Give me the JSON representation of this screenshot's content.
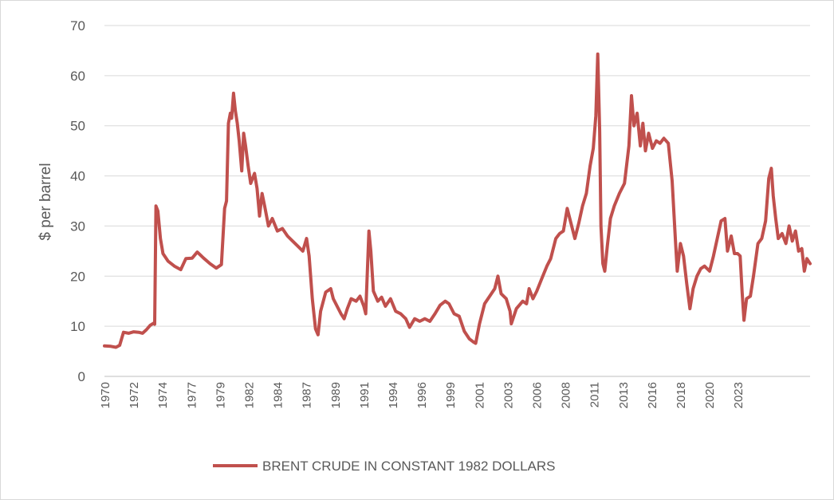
{
  "chart_data": {
    "type": "line",
    "ylabel": "$ per barrel",
    "xlabel": "",
    "ylim": [
      0,
      70
    ],
    "yticks": [
      0,
      10,
      20,
      30,
      40,
      50,
      60,
      70
    ],
    "xlim": [
      1970,
      2025.5
    ],
    "xtick_labels": [
      "1970",
      "1972",
      "1974",
      "1977",
      "1979",
      "1982",
      "1984",
      "1987",
      "1989",
      "1991",
      "1994",
      "1996",
      "1999",
      "2001",
      "2003",
      "2006",
      "2008",
      "2011",
      "2013",
      "2016",
      "2018",
      "2020",
      "2023"
    ],
    "grid": "horizontal",
    "legend_position": "bottom",
    "color": "#c0504d",
    "series": [
      {
        "name": "BRENT CRUDE IN CONSTANT 1982 DOLLARS",
        "points": [
          [
            1970.0,
            6.1
          ],
          [
            1970.5,
            6.0
          ],
          [
            1970.9,
            5.8
          ],
          [
            1971.2,
            6.2
          ],
          [
            1971.5,
            8.8
          ],
          [
            1971.9,
            8.6
          ],
          [
            1972.3,
            8.9
          ],
          [
            1972.7,
            8.8
          ],
          [
            1973.0,
            8.6
          ],
          [
            1973.3,
            9.3
          ],
          [
            1973.6,
            10.2
          ],
          [
            1973.85,
            10.6
          ],
          [
            1973.95,
            10.4
          ],
          [
            1974.05,
            34.0
          ],
          [
            1974.2,
            33.0
          ],
          [
            1974.4,
            27.5
          ],
          [
            1974.6,
            24.5
          ],
          [
            1975.0,
            23.0
          ],
          [
            1975.5,
            22.0
          ],
          [
            1976.0,
            21.3
          ],
          [
            1976.4,
            23.5
          ],
          [
            1976.9,
            23.6
          ],
          [
            1977.3,
            24.8
          ],
          [
            1977.8,
            23.6
          ],
          [
            1978.3,
            22.5
          ],
          [
            1978.8,
            21.6
          ],
          [
            1979.2,
            22.3
          ],
          [
            1979.45,
            33.5
          ],
          [
            1979.6,
            35.0
          ],
          [
            1979.75,
            50.5
          ],
          [
            1979.9,
            52.5
          ],
          [
            1980.0,
            51.5
          ],
          [
            1980.15,
            56.5
          ],
          [
            1980.3,
            53.0
          ],
          [
            1980.45,
            50.5
          ],
          [
            1980.6,
            47.0
          ],
          [
            1980.8,
            41.0
          ],
          [
            1980.95,
            48.5
          ],
          [
            1981.1,
            46.0
          ],
          [
            1981.3,
            42.0
          ],
          [
            1981.5,
            38.5
          ],
          [
            1981.8,
            40.5
          ],
          [
            1982.0,
            37.5
          ],
          [
            1982.2,
            32.0
          ],
          [
            1982.4,
            36.5
          ],
          [
            1982.6,
            34.0
          ],
          [
            1982.9,
            30.0
          ],
          [
            1983.2,
            31.5
          ],
          [
            1983.6,
            29.0
          ],
          [
            1984.0,
            29.5
          ],
          [
            1984.4,
            28.0
          ],
          [
            1984.8,
            27.0
          ],
          [
            1985.2,
            26.0
          ],
          [
            1985.6,
            25.0
          ],
          [
            1985.9,
            27.5
          ],
          [
            1986.1,
            24.0
          ],
          [
            1986.35,
            15.5
          ],
          [
            1986.6,
            9.5
          ],
          [
            1986.8,
            8.3
          ],
          [
            1987.0,
            13.0
          ],
          [
            1987.4,
            16.8
          ],
          [
            1987.8,
            17.5
          ],
          [
            1988.0,
            15.5
          ],
          [
            1988.3,
            14.0
          ],
          [
            1988.6,
            12.5
          ],
          [
            1988.85,
            11.5
          ],
          [
            1989.1,
            13.5
          ],
          [
            1989.4,
            15.5
          ],
          [
            1989.8,
            15.0
          ],
          [
            1990.1,
            16.0
          ],
          [
            1990.4,
            14.0
          ],
          [
            1990.55,
            12.5
          ],
          [
            1990.8,
            29.0
          ],
          [
            1990.95,
            25.0
          ],
          [
            1991.15,
            17.0
          ],
          [
            1991.5,
            15.0
          ],
          [
            1991.8,
            15.8
          ],
          [
            1992.1,
            14.0
          ],
          [
            1992.5,
            15.5
          ],
          [
            1992.9,
            13.0
          ],
          [
            1993.3,
            12.5
          ],
          [
            1993.7,
            11.5
          ],
          [
            1994.0,
            9.8
          ],
          [
            1994.4,
            11.5
          ],
          [
            1994.8,
            11.0
          ],
          [
            1995.2,
            11.5
          ],
          [
            1995.6,
            11.0
          ],
          [
            1996.0,
            12.5
          ],
          [
            1996.4,
            14.2
          ],
          [
            1996.8,
            15.0
          ],
          [
            1997.1,
            14.5
          ],
          [
            1997.5,
            12.5
          ],
          [
            1997.9,
            12.0
          ],
          [
            1998.3,
            9.0
          ],
          [
            1998.7,
            7.5
          ],
          [
            1999.0,
            6.9
          ],
          [
            1999.2,
            6.6
          ],
          [
            1999.5,
            10.5
          ],
          [
            1999.9,
            14.5
          ],
          [
            2000.3,
            16.0
          ],
          [
            2000.7,
            17.5
          ],
          [
            2000.95,
            20.0
          ],
          [
            2001.2,
            16.5
          ],
          [
            2001.6,
            15.5
          ],
          [
            2001.9,
            13.0
          ],
          [
            2002.0,
            10.5
          ],
          [
            2002.4,
            13.5
          ],
          [
            2002.9,
            15.0
          ],
          [
            2003.2,
            14.5
          ],
          [
            2003.4,
            17.5
          ],
          [
            2003.7,
            15.5
          ],
          [
            2004.0,
            17.0
          ],
          [
            2004.4,
            19.5
          ],
          [
            2004.8,
            22.0
          ],
          [
            2005.1,
            23.5
          ],
          [
            2005.5,
            27.5
          ],
          [
            2005.8,
            28.5
          ],
          [
            2006.1,
            29.0
          ],
          [
            2006.4,
            33.5
          ],
          [
            2006.7,
            30.5
          ],
          [
            2007.0,
            27.5
          ],
          [
            2007.3,
            30.5
          ],
          [
            2007.6,
            34.0
          ],
          [
            2007.9,
            36.5
          ],
          [
            2008.2,
            42.0
          ],
          [
            2008.45,
            45.5
          ],
          [
            2008.65,
            52.0
          ],
          [
            2008.8,
            64.3
          ],
          [
            2008.95,
            49.0
          ],
          [
            2009.05,
            30.0
          ],
          [
            2009.2,
            22.5
          ],
          [
            2009.35,
            21.0
          ],
          [
            2009.55,
            26.0
          ],
          [
            2009.8,
            31.5
          ],
          [
            2010.1,
            34.0
          ],
          [
            2010.5,
            36.5
          ],
          [
            2010.9,
            38.5
          ],
          [
            2011.25,
            46.0
          ],
          [
            2011.45,
            56.0
          ],
          [
            2011.65,
            50.0
          ],
          [
            2011.9,
            52.5
          ],
          [
            2012.15,
            46.0
          ],
          [
            2012.35,
            50.5
          ],
          [
            2012.55,
            45.0
          ],
          [
            2012.8,
            48.5
          ],
          [
            2013.1,
            45.5
          ],
          [
            2013.4,
            47.0
          ],
          [
            2013.7,
            46.5
          ],
          [
            2014.0,
            47.5
          ],
          [
            2014.35,
            46.5
          ],
          [
            2014.65,
            39.0
          ],
          [
            2014.9,
            27.5
          ],
          [
            2015.05,
            21.0
          ],
          [
            2015.3,
            26.5
          ],
          [
            2015.55,
            24.0
          ],
          [
            2015.8,
            18.5
          ],
          [
            2016.05,
            13.5
          ],
          [
            2016.3,
            17.5
          ],
          [
            2016.6,
            20.0
          ],
          [
            2016.9,
            21.5
          ],
          [
            2017.2,
            22.0
          ],
          [
            2017.6,
            21.0
          ],
          [
            2017.9,
            24.0
          ],
          [
            2018.2,
            27.5
          ],
          [
            2018.5,
            31.0
          ],
          [
            2018.8,
            31.5
          ],
          [
            2019.0,
            25.0
          ],
          [
            2019.3,
            28.0
          ],
          [
            2019.55,
            24.5
          ],
          [
            2019.8,
            24.5
          ],
          [
            2020.0,
            24.0
          ],
          [
            2020.15,
            17.0
          ],
          [
            2020.3,
            11.2
          ],
          [
            2020.5,
            15.5
          ],
          [
            2020.8,
            16.0
          ],
          [
            2021.05,
            20.0
          ],
          [
            2021.4,
            26.5
          ],
          [
            2021.7,
            27.5
          ],
          [
            2022.0,
            31.0
          ],
          [
            2022.25,
            39.5
          ],
          [
            2022.45,
            41.5
          ],
          [
            2022.6,
            36.0
          ],
          [
            2022.8,
            31.5
          ],
          [
            2023.0,
            27.5
          ],
          [
            2023.3,
            28.5
          ],
          [
            2023.6,
            26.5
          ],
          [
            2023.85,
            30.0
          ],
          [
            2024.1,
            27.0
          ],
          [
            2024.35,
            29.0
          ],
          [
            2024.6,
            25.0
          ],
          [
            2024.85,
            25.5
          ],
          [
            2025.05,
            21.0
          ],
          [
            2025.25,
            23.5
          ],
          [
            2025.5,
            22.5
          ]
        ]
      }
    ]
  }
}
